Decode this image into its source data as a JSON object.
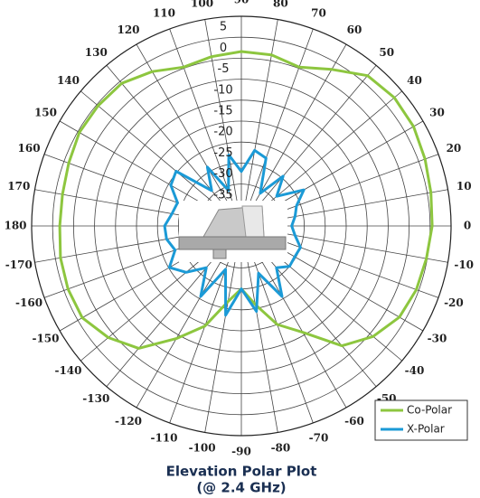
{
  "chart_data": {
    "type": "polar",
    "title": "Elevation Polar Plot",
    "subtitle": "(@ 2.4 GHz)",
    "rlim": [
      -40,
      10
    ],
    "rticks": [
      5,
      0,
      -5,
      -10,
      -15,
      -20,
      -25,
      -30,
      -35
    ],
    "thetaticks": [
      0,
      10,
      20,
      30,
      40,
      50,
      60,
      70,
      80,
      90,
      100,
      110,
      120,
      130,
      140,
      150,
      160,
      170,
      180,
      -170,
      -160,
      -150,
      -140,
      -130,
      -120,
      -110,
      -100,
      -90,
      -80,
      -70,
      -60,
      -50,
      -40,
      -30,
      -20,
      -10
    ],
    "theta": [
      0,
      10,
      20,
      30,
      40,
      50,
      60,
      70,
      80,
      90,
      100,
      110,
      120,
      130,
      140,
      150,
      160,
      170,
      180,
      -170,
      -160,
      -150,
      -140,
      -130,
      -120,
      -110,
      -100,
      -90,
      -80,
      -70,
      -60,
      -50,
      -40,
      -30,
      -20,
      -10
    ],
    "series": [
      {
        "name": "Co-Polar",
        "color": "#8dc63f",
        "values": [
          5.5,
          5.9,
          6.6,
          7.4,
          7.6,
          6.8,
          3.1,
          0.3,
          1.4,
          1.6,
          1,
          0.3,
          2.5,
          4.4,
          4.6,
          4.6,
          3.8,
          3.3,
          3.3,
          3.8,
          4,
          3.8,
          1.4,
          -1.9,
          -9,
          -14.6,
          -21.7,
          -25,
          -21,
          -15,
          -10.7,
          -2.7,
          1,
          3.5,
          4.4,
          4.8
        ]
      },
      {
        "name": "X-Polar",
        "color": "#1b9ad6",
        "values": [
          -28,
          -27,
          -26,
          -22.8,
          -29,
          -24.5,
          -31,
          -22.8,
          -21.7,
          -27,
          -22.8,
          -31,
          -23.8,
          -29,
          -19.7,
          -20.6,
          -23.8,
          -23.2,
          -21.7,
          -21.9,
          -23.2,
          -20.2,
          -22.8,
          -27,
          -20.6,
          -29,
          -18.4,
          -25,
          -19.3,
          -28,
          -20.6,
          -27,
          -25,
          -25.3,
          -25,
          -27
        ]
      }
    ],
    "legend": "lower right"
  }
}
